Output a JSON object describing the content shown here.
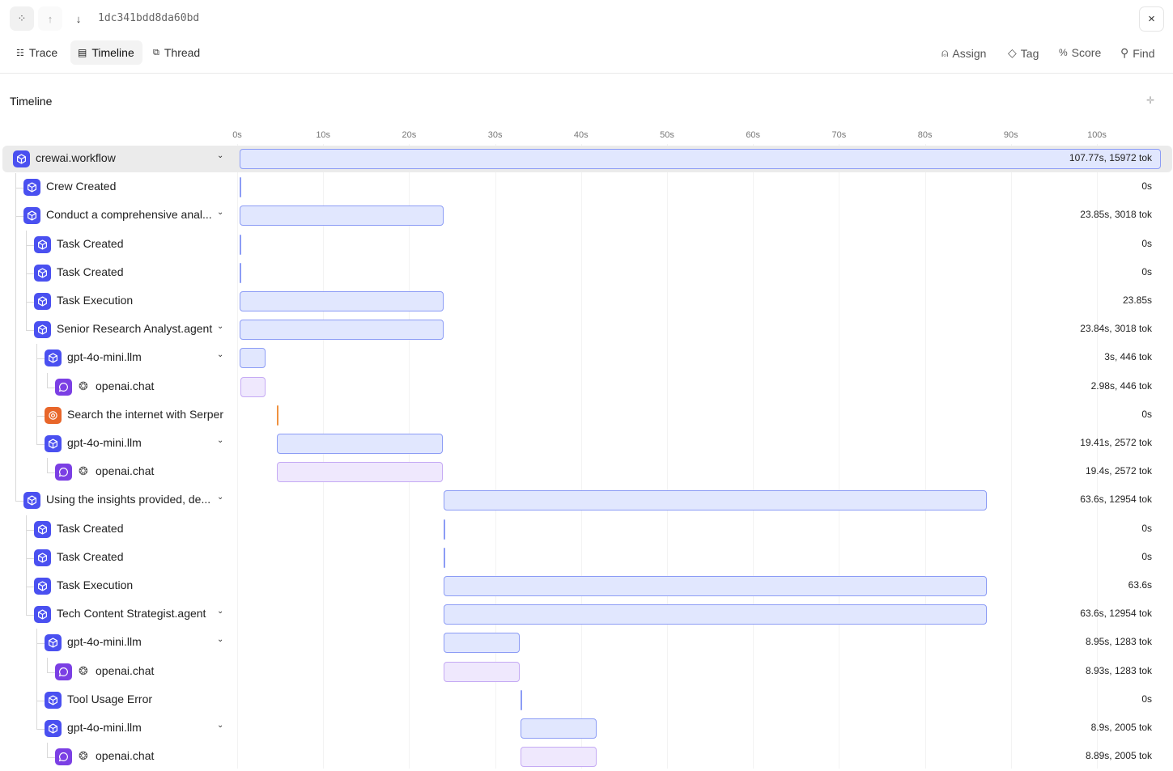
{
  "header": {
    "trace_id": "1dc341bdd8da60bd",
    "close": "×"
  },
  "tabs": [
    {
      "label": "Trace",
      "icon": "list-tree-icon"
    },
    {
      "label": "Timeline",
      "icon": "timeline-icon",
      "active": true
    },
    {
      "label": "Thread",
      "icon": "messages-icon"
    }
  ],
  "actions": [
    {
      "label": "Assign",
      "icon": "user-icon"
    },
    {
      "label": "Tag",
      "icon": "tag-icon"
    },
    {
      "label": "Score",
      "icon": "percent-icon"
    },
    {
      "label": "Find",
      "icon": "search-icon"
    }
  ],
  "section_title": "Timeline",
  "axis": {
    "ticks": [
      "0s",
      "10s",
      "20s",
      "30s",
      "40s",
      "50s",
      "60s",
      "70s",
      "80s",
      "90s",
      "100s"
    ]
  },
  "colors": {
    "span": "#4a50f0",
    "chat": "#7b3fe4",
    "tool": "#e8662a",
    "bar_fill": "#e1e7fe",
    "bar_border": "#8c9cf5",
    "chat_fill": "#efe8fd",
    "chat_border": "#c5aaf4",
    "tool_line": "#f0913f"
  },
  "spans": [
    {
      "name": "crewai.workflow",
      "depth": 0,
      "type": "span",
      "start": 0,
      "duration": 107.77,
      "meta": "107.77s, 15972 tok",
      "expandable": true,
      "selected": true
    },
    {
      "name": "Crew Created",
      "depth": 1,
      "type": "span",
      "start": 0,
      "duration": 0,
      "meta": "0s"
    },
    {
      "name": "Conduct a comprehensive anal...",
      "depth": 1,
      "type": "span",
      "start": 0,
      "duration": 23.85,
      "meta": "23.85s, 3018 tok",
      "expandable": true
    },
    {
      "name": "Task Created",
      "depth": 2,
      "type": "span",
      "start": 0,
      "duration": 0,
      "meta": "0s"
    },
    {
      "name": "Task Created",
      "depth": 2,
      "type": "span",
      "start": 0,
      "duration": 0,
      "meta": "0s"
    },
    {
      "name": "Task Execution",
      "depth": 2,
      "type": "span",
      "start": 0,
      "duration": 23.85,
      "meta": "23.85s"
    },
    {
      "name": "Senior Research Analyst.agent",
      "depth": 2,
      "type": "span",
      "start": 0,
      "duration": 23.84,
      "meta": "23.84s, 3018 tok",
      "expandable": true
    },
    {
      "name": "gpt-4o-mini.llm",
      "depth": 3,
      "type": "span",
      "start": 0,
      "duration": 3,
      "meta": "3s, 446 tok",
      "expandable": true
    },
    {
      "name": "openai.chat",
      "depth": 4,
      "type": "chat",
      "start": 0.05,
      "duration": 2.98,
      "meta": "2.98s, 446 tok"
    },
    {
      "name": "Search the internet with Serper",
      "depth": 3,
      "type": "tool",
      "start": 4.4,
      "duration": 0,
      "meta": "0s"
    },
    {
      "name": "gpt-4o-mini.llm",
      "depth": 3,
      "type": "span",
      "start": 4.4,
      "duration": 19.41,
      "meta": "19.41s, 2572 tok",
      "expandable": true
    },
    {
      "name": "openai.chat",
      "depth": 4,
      "type": "chat",
      "start": 4.4,
      "duration": 19.4,
      "meta": "19.4s, 2572 tok"
    },
    {
      "name": "Using the insights provided, de...",
      "depth": 1,
      "type": "span",
      "start": 23.85,
      "duration": 63.6,
      "meta": "63.6s, 12954 tok",
      "expandable": true
    },
    {
      "name": "Task Created",
      "depth": 2,
      "type": "span",
      "start": 23.85,
      "duration": 0,
      "meta": "0s"
    },
    {
      "name": "Task Created",
      "depth": 2,
      "type": "span",
      "start": 23.85,
      "duration": 0,
      "meta": "0s"
    },
    {
      "name": "Task Execution",
      "depth": 2,
      "type": "span",
      "start": 23.85,
      "duration": 63.6,
      "meta": "63.6s"
    },
    {
      "name": "Tech Content Strategist.agent",
      "depth": 2,
      "type": "span",
      "start": 23.85,
      "duration": 63.6,
      "meta": "63.6s, 12954 tok",
      "expandable": true
    },
    {
      "name": "gpt-4o-mini.llm",
      "depth": 3,
      "type": "span",
      "start": 23.85,
      "duration": 8.95,
      "meta": "8.95s, 1283 tok",
      "expandable": true
    },
    {
      "name": "openai.chat",
      "depth": 4,
      "type": "chat",
      "start": 23.85,
      "duration": 8.93,
      "meta": "8.93s, 1283 tok"
    },
    {
      "name": "Tool Usage Error",
      "depth": 3,
      "type": "span",
      "start": 32.9,
      "duration": 0,
      "meta": "0s"
    },
    {
      "name": "gpt-4o-mini.llm",
      "depth": 3,
      "type": "span",
      "start": 32.9,
      "duration": 8.9,
      "meta": "8.9s, 2005 tok",
      "expandable": true
    },
    {
      "name": "openai.chat",
      "depth": 4,
      "type": "chat",
      "start": 32.9,
      "duration": 8.89,
      "meta": "8.89s, 2005 tok"
    }
  ]
}
